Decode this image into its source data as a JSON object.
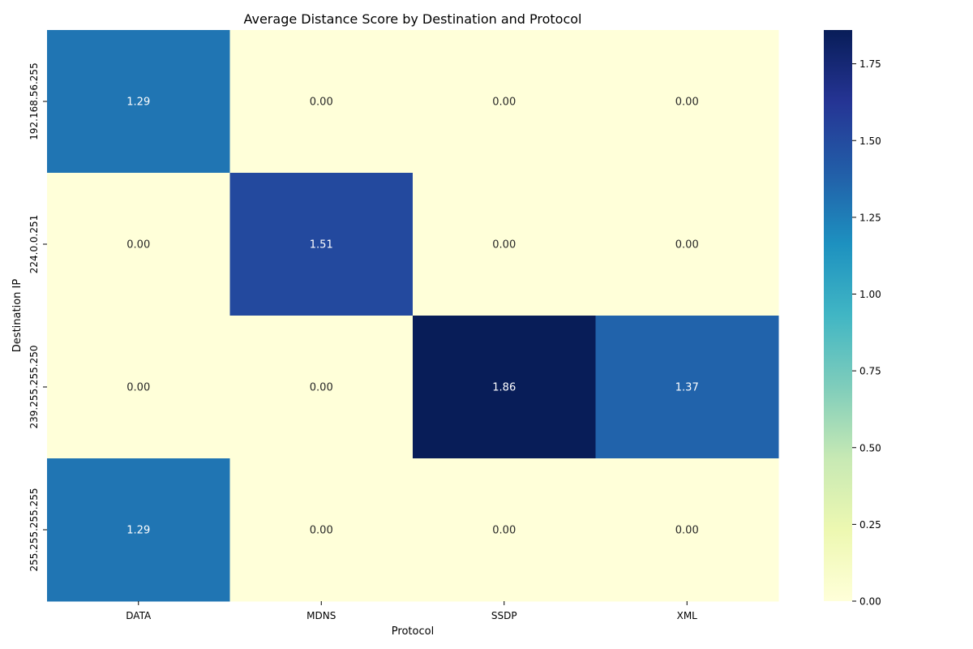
{
  "chart_data": {
    "type": "heatmap",
    "title": "Average Distance Score by Destination and Protocol",
    "xlabel": "Protocol",
    "ylabel": "Destination IP",
    "x_categories": [
      "DATA",
      "MDNS",
      "SSDP",
      "XML"
    ],
    "y_categories": [
      "192.168.56.255",
      "224.0.0.251",
      "239.255.255.250",
      "255.255.255.255"
    ],
    "values": [
      [
        1.29,
        0.0,
        0.0,
        0.0
      ],
      [
        0.0,
        1.51,
        0.0,
        0.0
      ],
      [
        0.0,
        0.0,
        1.86,
        1.37
      ],
      [
        1.29,
        0.0,
        0.0,
        0.0
      ]
    ],
    "value_format": "0.00",
    "colormap": "YlGnBu",
    "colorbar": {
      "range": [
        0,
        1.86
      ],
      "ticks": [
        "0.00",
        "0.25",
        "0.50",
        "0.75",
        "1.00",
        "1.25",
        "1.50",
        "1.75"
      ]
    },
    "annotation_colors": {
      "light_text": "#ffffff",
      "dark_text": "#262626"
    }
  }
}
